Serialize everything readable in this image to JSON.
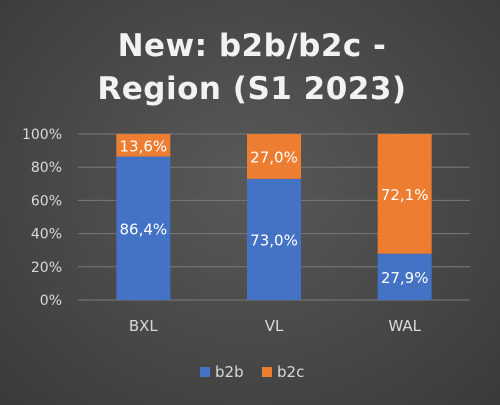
{
  "chart_data": {
    "type": "bar",
    "stacked": true,
    "title_lines": [
      "New: b2b/b2c -",
      "Region (S1 2023)"
    ],
    "categories": [
      "BXL",
      "VL",
      "WAL"
    ],
    "series": [
      {
        "name": "b2b",
        "color": "#4472c4",
        "values": [
          86.4,
          73.0,
          27.9
        ],
        "labels": [
          "86,4%",
          "73,0%",
          "27,9%"
        ]
      },
      {
        "name": "b2c",
        "color": "#ed7d31",
        "values": [
          13.6,
          27.0,
          72.1
        ],
        "labels": [
          "13,6%",
          "27,0%",
          "72,1%"
        ]
      }
    ],
    "y_ticks": [
      0,
      20,
      40,
      60,
      80,
      100
    ],
    "y_tick_labels": [
      "0%",
      "20%",
      "40%",
      "60%",
      "80%",
      "100%"
    ],
    "ylim": [
      0,
      100
    ],
    "grid": true,
    "legend_position": "bottom"
  }
}
